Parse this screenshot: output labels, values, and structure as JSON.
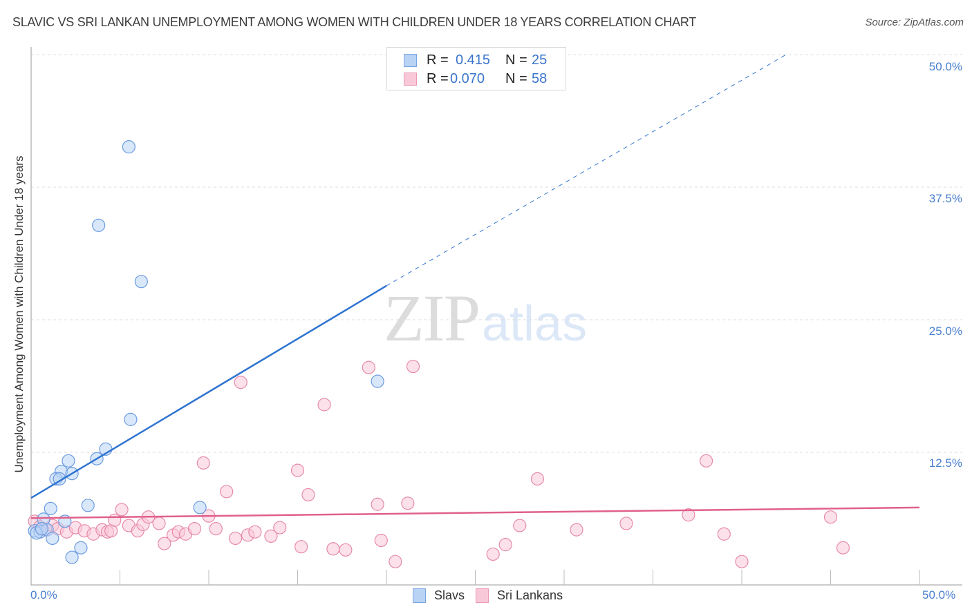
{
  "header": {
    "title": "SLAVIC VS SRI LANKAN UNEMPLOYMENT AMONG WOMEN WITH CHILDREN UNDER 18 YEARS CORRELATION CHART",
    "source": "Source: ZipAtlas.com"
  },
  "axes": {
    "y_label": "Unemployment Among Women with Children Under 18 years",
    "y_ticks": [
      "50.0%",
      "37.5%",
      "25.0%",
      "12.5%"
    ],
    "x_ticks": [
      "0.0%",
      "50.0%"
    ]
  },
  "legend": {
    "rows": [
      {
        "r_label": "R =",
        "r_value": "0.415",
        "n_label": "N =",
        "n_value": "25"
      },
      {
        "r_label": "R =",
        "r_value": "0.070",
        "n_label": "N =",
        "n_value": "58"
      }
    ],
    "bottom": [
      {
        "label": "Slavs"
      },
      {
        "label": "Sri Lankans"
      }
    ]
  },
  "watermark": {
    "zip": "ZIP",
    "atlas": "atlas"
  },
  "colors": {
    "slavs_fill": "#b9d3f5",
    "slavs_stroke": "#6a9be0",
    "slavs_line": "#2f74d0",
    "srilankans_fill": "#f9c8d8",
    "srilankans_stroke": "#e68aa8",
    "srilankans_line": "#e0608a",
    "tick_text": "#4a7fcf"
  },
  "chart_data": {
    "type": "scatter",
    "title": "SLAVIC VS SRI LANKAN UNEMPLOYMENT AMONG WOMEN WITH CHILDREN UNDER 18 YEARS CORRELATION CHART",
    "xlabel": "",
    "ylabel": "Unemployment Among Women with Children Under 18 years",
    "xlim": [
      0,
      50
    ],
    "ylim": [
      0,
      50
    ],
    "x_ticks": [
      0,
      5,
      10,
      15,
      20,
      25,
      30,
      35,
      40,
      45,
      50
    ],
    "y_ticks": [
      12.5,
      25.0,
      37.5,
      50.0
    ],
    "grid": {
      "horizontal_dashed": true
    },
    "legend_position": "top-center and bottom",
    "series": [
      {
        "name": "Slavs",
        "R": 0.415,
        "N": 25,
        "trendline": {
          "x": [
            0,
            20,
            42.5
          ],
          "y": [
            8.2,
            28.2,
            50.0
          ],
          "solid_until_x": 20
        },
        "points": [
          [
            5.5,
            41.3
          ],
          [
            3.8,
            33.9
          ],
          [
            6.2,
            28.6
          ],
          [
            19.5,
            19.2
          ],
          [
            5.6,
            15.6
          ],
          [
            4.2,
            12.8
          ],
          [
            3.7,
            11.9
          ],
          [
            2.1,
            11.7
          ],
          [
            1.7,
            10.7
          ],
          [
            2.3,
            10.5
          ],
          [
            1.4,
            10.0
          ],
          [
            1.6,
            10.0
          ],
          [
            3.2,
            7.5
          ],
          [
            9.5,
            7.3
          ],
          [
            1.1,
            7.2
          ],
          [
            0.7,
            6.2
          ],
          [
            1.9,
            6.0
          ],
          [
            0.2,
            5.1
          ],
          [
            0.5,
            5.0
          ],
          [
            0.9,
            5.2
          ],
          [
            0.3,
            4.9
          ],
          [
            1.2,
            4.4
          ],
          [
            2.8,
            3.5
          ],
          [
            2.3,
            2.6
          ],
          [
            0.6,
            5.3
          ]
        ]
      },
      {
        "name": "Sri Lankans",
        "R": 0.07,
        "N": 58,
        "trendline": {
          "x": [
            0,
            50
          ],
          "y": [
            6.3,
            7.3
          ]
        },
        "points": [
          [
            0.2,
            6.0
          ],
          [
            0.5,
            5.5
          ],
          [
            0.8,
            5.2
          ],
          [
            1.2,
            5.6
          ],
          [
            1.5,
            5.3
          ],
          [
            2.0,
            5.0
          ],
          [
            2.5,
            5.4
          ],
          [
            3.0,
            5.1
          ],
          [
            3.5,
            4.8
          ],
          [
            4.0,
            5.2
          ],
          [
            4.3,
            5.0
          ],
          [
            4.5,
            5.1
          ],
          [
            4.7,
            6.1
          ],
          [
            5.1,
            7.1
          ],
          [
            5.5,
            5.6
          ],
          [
            6.0,
            5.1
          ],
          [
            6.3,
            5.7
          ],
          [
            6.6,
            6.4
          ],
          [
            7.2,
            5.8
          ],
          [
            7.5,
            3.9
          ],
          [
            8.0,
            4.7
          ],
          [
            8.3,
            5.0
          ],
          [
            8.7,
            4.8
          ],
          [
            9.2,
            5.3
          ],
          [
            9.7,
            11.5
          ],
          [
            10.0,
            6.5
          ],
          [
            10.4,
            5.3
          ],
          [
            11.0,
            8.8
          ],
          [
            11.5,
            4.4
          ],
          [
            11.8,
            19.1
          ],
          [
            12.2,
            4.7
          ],
          [
            12.6,
            5.0
          ],
          [
            13.5,
            4.6
          ],
          [
            14.0,
            5.4
          ],
          [
            15.0,
            10.8
          ],
          [
            15.2,
            3.6
          ],
          [
            15.6,
            8.5
          ],
          [
            16.5,
            17.0
          ],
          [
            17.0,
            3.4
          ],
          [
            17.7,
            3.3
          ],
          [
            19.0,
            20.5
          ],
          [
            19.5,
            7.6
          ],
          [
            19.7,
            4.2
          ],
          [
            20.5,
            2.2
          ],
          [
            21.5,
            20.6
          ],
          [
            21.2,
            7.7
          ],
          [
            26.0,
            2.9
          ],
          [
            26.7,
            3.8
          ],
          [
            27.5,
            5.6
          ],
          [
            28.5,
            10.0
          ],
          [
            30.7,
            5.2
          ],
          [
            33.5,
            5.8
          ],
          [
            37.0,
            6.6
          ],
          [
            38.0,
            11.7
          ],
          [
            39.0,
            4.8
          ],
          [
            40.0,
            2.2
          ],
          [
            45.0,
            6.4
          ],
          [
            45.7,
            3.5
          ]
        ]
      }
    ]
  }
}
